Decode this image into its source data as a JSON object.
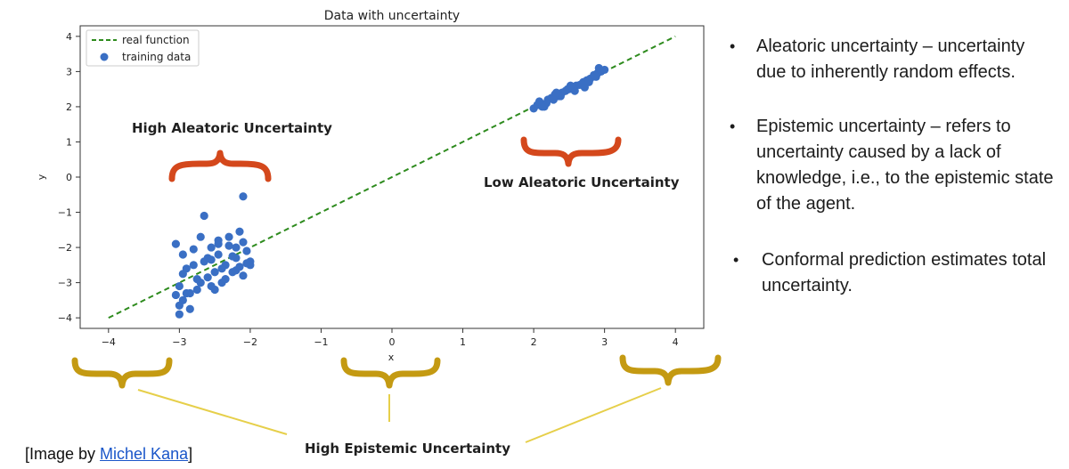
{
  "chart_data": {
    "type": "scatter",
    "title": "Data with uncertainty",
    "xlabel": "x",
    "ylabel": "y",
    "xlim": [
      -4.4,
      4.4
    ],
    "ylim": [
      -4.3,
      4.3
    ],
    "xticks": [
      -4,
      -3,
      -2,
      -1,
      0,
      1,
      2,
      3,
      4
    ],
    "yticks": [
      -4,
      -3,
      -2,
      -1,
      0,
      1,
      2,
      3,
      4
    ],
    "xtick_labels": [
      "−4",
      "−3",
      "−2",
      "−1",
      "0",
      "1",
      "2",
      "3",
      "4"
    ],
    "ytick_labels": [
      "−4",
      "−3",
      "−2",
      "−1",
      "0",
      "1",
      "2",
      "3",
      "4"
    ],
    "legend_position": "top-left",
    "colors": {
      "line": "#2e8b1e",
      "points": "#3a6fc4"
    },
    "series": [
      {
        "name": "real function",
        "type": "line",
        "style": "dashed",
        "x": [
          -4,
          4
        ],
        "y": [
          -4,
          4
        ]
      },
      {
        "name": "training data",
        "type": "scatter",
        "x": [
          -2.1,
          -2.65,
          -3.05,
          -2.7,
          -2.95,
          -2.8,
          -2.55,
          -2.45,
          -2.3,
          -2.15,
          -2.05,
          -2.2,
          -2.35,
          -2.5,
          -2.6,
          -2.75,
          -2.9,
          -3.0,
          -2.85,
          -2.4,
          -2.25,
          -2.1,
          -2.0,
          -2.2,
          -2.45,
          -2.65,
          -2.8,
          -2.95,
          -3.05,
          -2.55,
          -2.35,
          -2.15,
          -2.05,
          -2.5,
          -2.7,
          -2.9,
          -3.0,
          -2.85,
          -2.6,
          -2.4,
          -2.25,
          -2.1,
          -2.3,
          -2.75,
          -2.95,
          -2.55,
          -2.2,
          -2.0,
          -2.45,
          -3.0,
          2.0,
          2.05,
          2.1,
          2.15,
          2.2,
          2.25,
          2.3,
          2.35,
          2.4,
          2.45,
          2.5,
          2.55,
          2.6,
          2.65,
          2.7,
          2.75,
          2.8,
          2.85,
          2.9,
          2.95,
          3.0,
          2.08,
          2.18,
          2.28,
          2.38,
          2.48,
          2.58,
          2.68,
          2.78,
          2.88,
          2.12,
          2.32,
          2.52,
          2.72,
          2.92
        ],
        "y": [
          -0.55,
          -1.1,
          -1.9,
          -1.7,
          -2.2,
          -2.5,
          -2.0,
          -1.8,
          -1.7,
          -1.55,
          -2.1,
          -2.3,
          -2.5,
          -2.7,
          -2.3,
          -2.9,
          -2.6,
          -3.1,
          -3.3,
          -3.0,
          -2.7,
          -2.8,
          -2.4,
          -2.0,
          -2.2,
          -2.4,
          -2.05,
          -2.75,
          -3.35,
          -3.1,
          -2.9,
          -2.55,
          -2.45,
          -3.2,
          -3.0,
          -3.3,
          -3.65,
          -3.75,
          -2.85,
          -2.6,
          -2.25,
          -1.85,
          -1.95,
          -3.2,
          -3.5,
          -2.35,
          -2.65,
          -2.5,
          -1.9,
          -3.9,
          1.95,
          2.05,
          2.1,
          2.0,
          2.2,
          2.25,
          2.35,
          2.3,
          2.4,
          2.45,
          2.5,
          2.55,
          2.6,
          2.62,
          2.7,
          2.75,
          2.8,
          2.9,
          2.95,
          3.0,
          3.05,
          2.15,
          2.1,
          2.2,
          2.3,
          2.5,
          2.45,
          2.65,
          2.7,
          2.85,
          2.0,
          2.4,
          2.6,
          2.55,
          3.1
        ]
      }
    ]
  },
  "annotations": {
    "high_aleatoric": "High Aleatoric Uncertainty",
    "low_aleatoric": "Low Aleatoric Uncertainty",
    "high_epistemic": "High Epistemic Uncertainty"
  },
  "bullets": [
    {
      "marker": "•",
      "text": "Aleatoric uncertainty – uncertainty due to inherently random effects."
    },
    {
      "marker": "•",
      "text": "Epistemic uncertainty – refers to uncertainty caused by a lack of knowledge, i.e., to the epistemic state of the agent."
    },
    {
      "marker": "•",
      "text": "Conformal prediction estimates total uncertainty."
    }
  ],
  "credit": {
    "prefix": "[Image by ",
    "link_text": "Michel Kana",
    "suffix": "]"
  },
  "brace_colors": {
    "aleatoric": "#d4481c",
    "epistemic": "#c49a12",
    "connector": "#e6cf4a"
  }
}
